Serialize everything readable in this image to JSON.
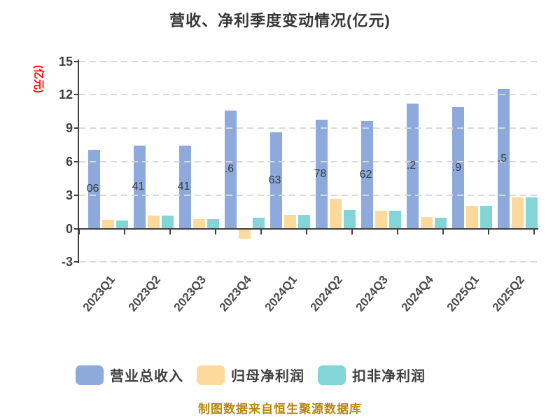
{
  "title": "营收、净利季度变动情况(亿元)",
  "y_axis": {
    "name": "(亿元)",
    "name_color": "#FF0000",
    "ticks": [
      15,
      12,
      9,
      6,
      3,
      0,
      -3
    ]
  },
  "chart_data": {
    "type": "bar",
    "title": "营收、净利季度变动情况(亿元)",
    "xlabel": "",
    "ylabel": "(亿元)",
    "ylim": [
      -3,
      15
    ],
    "grid": true,
    "grid_style": "dashed",
    "legend_position": "bottom",
    "categories": [
      "2023Q1",
      "2023Q2",
      "2023Q3",
      "2023Q4",
      "2024Q1",
      "2024Q2",
      "2024Q3",
      "2024Q4",
      "2025Q1",
      "2025Q2"
    ],
    "series": [
      {
        "name": "营业总收入",
        "color": "#8EA9DB",
        "values": [
          7.06,
          7.41,
          7.41,
          10.6,
          8.63,
          9.78,
          9.62,
          11.2,
          10.9,
          12.5
        ],
        "visible_value_labels": [
          "06",
          "41",
          "41",
          ".6",
          "63",
          "78",
          "62",
          ".2",
          ".9",
          ".5"
        ]
      },
      {
        "name": "归母净利润",
        "color": "#FDD99B",
        "values": [
          0.76,
          1.16,
          0.85,
          -0.88,
          1.22,
          2.64,
          1.57,
          1.02,
          2.02,
          2.8
        ]
      },
      {
        "name": "扣非净利润",
        "color": "#84D5D5",
        "values": [
          0.74,
          1.16,
          0.82,
          0.99,
          1.2,
          1.67,
          1.57,
          1.0,
          2.02,
          2.78
        ]
      }
    ]
  },
  "legend": {
    "items": [
      {
        "label": "营业总收入",
        "color": "#8EA9DB"
      },
      {
        "label": "归母净利润",
        "color": "#FDD99B"
      },
      {
        "label": "扣非净利润",
        "color": "#84D5D5"
      }
    ]
  },
  "footer": {
    "text": "制图数据来自恒生聚源数据库",
    "color": "#B8860B"
  },
  "colors": {
    "grid": "#D9D9D9",
    "axis": "#3F3F3F",
    "title": "#37373A",
    "tick_label": "#404040",
    "bar_label": "#3A3A3E"
  }
}
